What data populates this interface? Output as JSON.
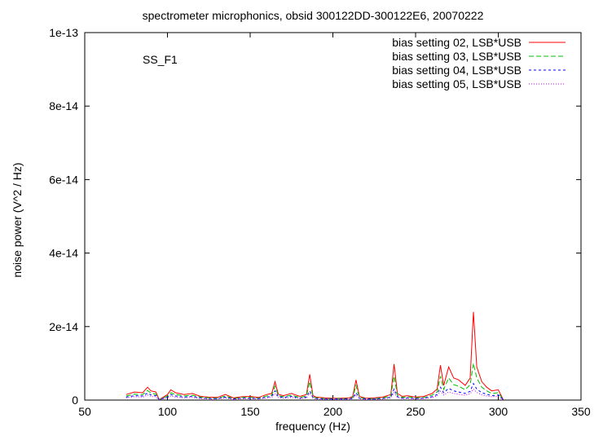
{
  "chart_data": {
    "type": "line",
    "title": "spectrometer microphonics, obsid 300122DD-300122E6, 20070222",
    "xlabel": "frequency (Hz)",
    "ylabel": "noise power (V^2 / Hz)",
    "annotation": "SS_F1",
    "xlim": [
      50,
      350
    ],
    "ylim": [
      0,
      1e-13
    ],
    "x_ticks": [
      {
        "value": 50,
        "label": "50"
      },
      {
        "value": 100,
        "label": "100"
      },
      {
        "value": 150,
        "label": "150"
      },
      {
        "value": 200,
        "label": "200"
      },
      {
        "value": 250,
        "label": "250"
      },
      {
        "value": 300,
        "label": "300"
      },
      {
        "value": 350,
        "label": "350"
      }
    ],
    "y_ticks": [
      {
        "value": 0,
        "label": "0"
      },
      {
        "value": 2e-14,
        "label": "2e-14"
      },
      {
        "value": 4e-14,
        "label": "4e-14"
      },
      {
        "value": 6e-14,
        "label": "6e-14"
      },
      {
        "value": 8e-14,
        "label": "8e-14"
      },
      {
        "value": 1e-13,
        "label": "1e-13"
      }
    ],
    "legend_position": "top-right",
    "grid": false,
    "x": [
      75,
      80,
      85,
      88,
      90,
      93,
      95,
      100,
      102,
      105,
      110,
      115,
      120,
      125,
      130,
      135,
      140,
      145,
      150,
      155,
      160,
      163,
      165,
      167,
      170,
      175,
      180,
      184,
      186,
      188,
      190,
      195,
      200,
      205,
      210,
      212,
      214,
      216,
      220,
      225,
      230,
      235,
      237,
      239,
      242,
      245,
      250,
      255,
      260,
      263,
      265,
      267,
      270,
      273,
      276,
      280,
      283,
      285,
      287,
      290,
      293,
      296,
      300,
      303
    ],
    "series": [
      {
        "name": "bias setting 02, LSB*USB",
        "color": "#ff0000",
        "dash": "",
        "values": [
          1.5e-15,
          2.2e-15,
          2e-15,
          3.5e-15,
          2.5e-15,
          2.2e-15,
          1e-16,
          1.5e-15,
          2.8e-15,
          2e-15,
          1.5e-15,
          1.8e-15,
          1e-15,
          8e-16,
          7e-16,
          1.5e-15,
          6e-16,
          9e-16,
          1e-15,
          7e-16,
          1.5e-15,
          1.8e-15,
          5e-15,
          1.6e-15,
          1.2e-15,
          1.8e-15,
          1e-15,
          1.5e-15,
          7e-15,
          1.2e-15,
          8e-16,
          6e-16,
          5e-16,
          5e-16,
          6e-16,
          1e-15,
          5.5e-15,
          1e-15,
          5e-16,
          6e-16,
          8e-16,
          1.5e-15,
          9.8e-15,
          1.8e-15,
          1e-15,
          1.2e-15,
          8e-16,
          1e-15,
          1.8e-15,
          3e-15,
          9.5e-15,
          4e-15,
          9e-15,
          6e-15,
          5.5e-15,
          4e-15,
          6e-15,
          2.4e-14,
          9e-15,
          5e-15,
          3.5e-15,
          2.5e-15,
          2.8e-15,
          1e-16
        ]
      },
      {
        "name": "bias setting 03, LSB*USB",
        "color": "#00c000",
        "dash": "6,3",
        "values": [
          1.1e-15,
          1.6e-15,
          1.5e-15,
          2.6e-15,
          1.9e-15,
          1.6e-15,
          1e-16,
          1.1e-15,
          2e-15,
          1.5e-15,
          1.1e-15,
          1.3e-15,
          8e-16,
          6e-16,
          5e-16,
          1.1e-15,
          4e-16,
          7e-16,
          7e-16,
          5e-16,
          1.1e-15,
          1.3e-15,
          3.8e-15,
          1.2e-15,
          9e-16,
          1.3e-15,
          7e-16,
          1.1e-15,
          5e-15,
          9e-16,
          6e-16,
          4e-16,
          4e-16,
          4e-16,
          4e-16,
          7e-16,
          4e-15,
          7e-16,
          4e-16,
          4e-16,
          6e-16,
          1.1e-15,
          6.5e-15,
          1.3e-15,
          7e-16,
          9e-16,
          6e-16,
          7e-16,
          1.3e-15,
          2.2e-15,
          6.5e-15,
          2.9e-15,
          6e-15,
          4.2e-15,
          3.8e-15,
          2.8e-15,
          4.2e-15,
          1e-14,
          6e-15,
          3.5e-15,
          2.5e-15,
          1.8e-15,
          2e-15,
          1e-16
        ]
      },
      {
        "name": "bias setting 04, LSB*USB",
        "color": "#0000ff",
        "dash": "3,3",
        "values": [
          8e-16,
          1.2e-15,
          1.1e-15,
          1.9e-15,
          1.4e-15,
          1.2e-15,
          1e-16,
          8e-16,
          1.5e-15,
          1.1e-15,
          8e-16,
          1e-15,
          6e-16,
          4e-16,
          4e-16,
          8e-16,
          3e-16,
          5e-16,
          5e-16,
          4e-16,
          8e-16,
          1e-15,
          2.5e-15,
          9e-16,
          7e-16,
          1e-15,
          5e-16,
          8e-16,
          2.5e-15,
          7e-16,
          4e-16,
          3e-16,
          3e-16,
          3e-16,
          3e-16,
          5e-16,
          2e-15,
          5e-16,
          3e-16,
          3e-16,
          4e-16,
          8e-16,
          3e-15,
          9e-16,
          5e-16,
          6e-16,
          4e-16,
          5e-16,
          9e-16,
          1.5e-15,
          3.5e-15,
          2e-15,
          3.2e-15,
          2.5e-15,
          2.2e-15,
          1.8e-15,
          2.4e-15,
          4.5e-15,
          3e-15,
          2e-15,
          1.6e-15,
          1.2e-15,
          1.4e-15,
          1e-16
        ]
      },
      {
        "name": "bias setting 05, LSB*USB",
        "color": "#c000ff",
        "dash": "1,2",
        "values": [
          6e-16,
          9e-16,
          8e-16,
          1.4e-15,
          1e-15,
          9e-16,
          1e-16,
          6e-16,
          1.1e-15,
          8e-16,
          6e-16,
          7e-16,
          4e-16,
          3e-16,
          3e-16,
          6e-16,
          2e-16,
          4e-16,
          4e-16,
          3e-16,
          6e-16,
          7e-16,
          1.8e-15,
          7e-16,
          5e-16,
          7e-16,
          4e-16,
          6e-16,
          1.8e-15,
          5e-16,
          3e-16,
          2e-16,
          2e-16,
          2e-16,
          2e-16,
          4e-16,
          1.4e-15,
          4e-16,
          2e-16,
          2e-16,
          3e-16,
          6e-16,
          2e-15,
          7e-16,
          4e-16,
          4e-16,
          3e-16,
          4e-16,
          7e-16,
          1.1e-15,
          2.4e-15,
          1.4e-15,
          2.2e-15,
          1.8e-15,
          1.6e-15,
          1.3e-15,
          1.7e-15,
          3e-15,
          2.1e-15,
          1.4e-15,
          1.1e-15,
          9e-16,
          1e-15,
          1e-16
        ]
      }
    ]
  }
}
